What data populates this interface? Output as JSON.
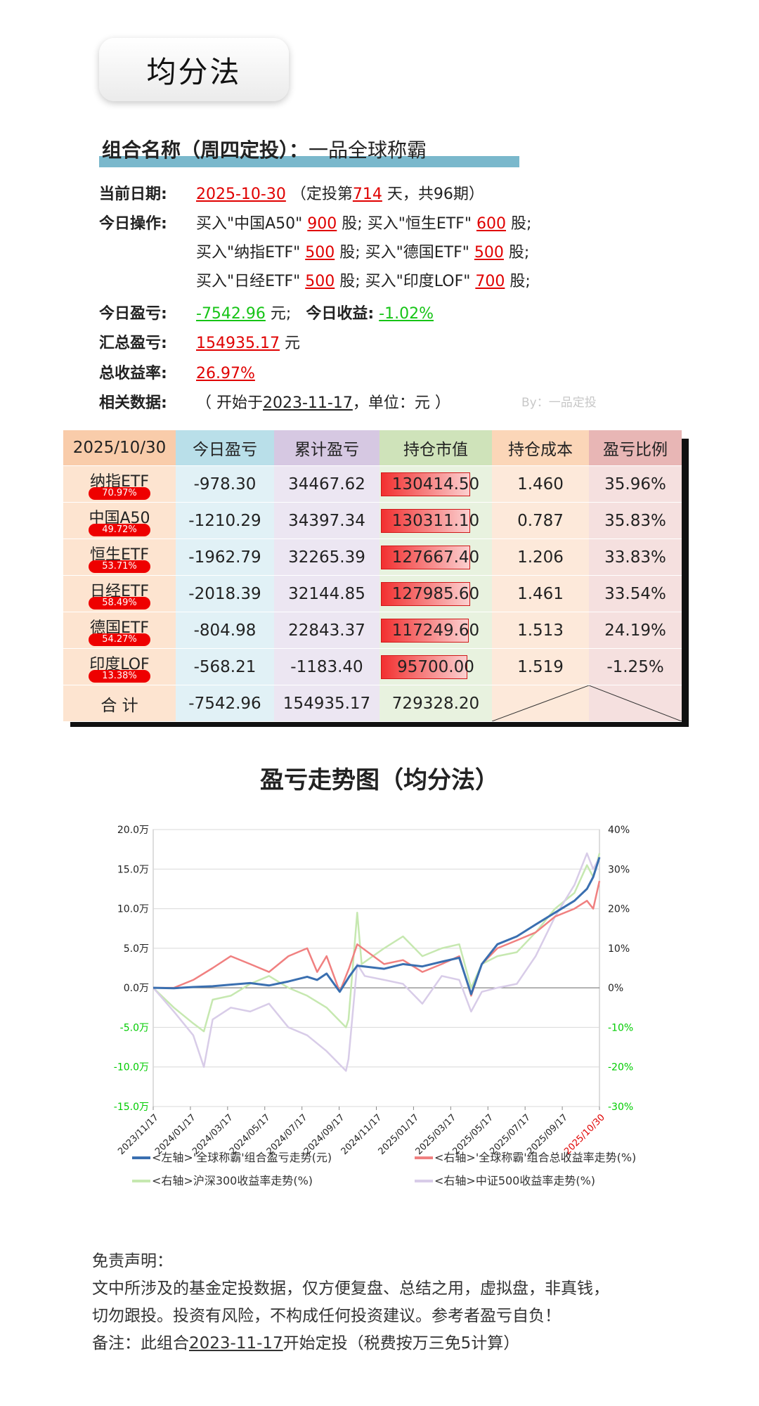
{
  "header": {
    "title": "均分法"
  },
  "portfolio": {
    "label": "组合名称（周四定投）：",
    "name": "一品全球称霸"
  },
  "info": {
    "date_label": "当前日期:",
    "date": "2025-10-30",
    "period_pre": "（定投第",
    "days": "714",
    "period_post": "天，共96期）",
    "op_label": "今日操作:",
    "ops": [
      [
        {
          "pre": "买入\"中国A50\"",
          "qty": "900",
          "post": "股;"
        },
        {
          "pre": "买入\"恒生ETF\"",
          "qty": "600",
          "post": "股;"
        }
      ],
      [
        {
          "pre": "买入\"纳指ETF\"",
          "qty": "500",
          "post": "股;"
        },
        {
          "pre": "买入\"德国ETF\"",
          "qty": "500",
          "post": "股;"
        }
      ],
      [
        {
          "pre": "买入\"日经ETF\"",
          "qty": "500",
          "post": "股;"
        },
        {
          "pre": "买入\"印度LOF\"",
          "qty": "700",
          "post": "股;"
        }
      ]
    ],
    "today_pl_label": "今日盈亏:",
    "today_pl": "-7542.96",
    "unit_yuan_sep": "元;",
    "today_ret_label": "今日收益:",
    "today_ret": "-1.02%",
    "total_pl_label": "汇总盈亏:",
    "total_pl": "154935.17",
    "unit_yuan": "元",
    "total_ret_label": "总收益率:",
    "total_ret": "26.97%",
    "related_label": "相关数据:",
    "related_pre": "（ 开始于",
    "related_date": "2023-11-17",
    "related_post": "，单位：元 ）",
    "by": "By：一品定投"
  },
  "table": {
    "headers": [
      "2025/10/30",
      "今日盈亏",
      "累计盈亏",
      "持仓市值",
      "持仓成本",
      "盈亏比例"
    ],
    "rows": [
      {
        "name": "纳指ETF",
        "pct": "70.97%",
        "today": "-978.30",
        "cum": "34467.62",
        "mv": "130414.50",
        "cost": "1.460",
        "ratio": "35.96%"
      },
      {
        "name": "中国A50",
        "pct": "49.72%",
        "today": "-1210.29",
        "cum": "34397.34",
        "mv": "130311.10",
        "cost": "0.787",
        "ratio": "35.83%"
      },
      {
        "name": "恒生ETF",
        "pct": "53.71%",
        "today": "-1962.79",
        "cum": "32265.39",
        "mv": "127667.40",
        "cost": "1.206",
        "ratio": "33.83%"
      },
      {
        "name": "日经ETF",
        "pct": "58.49%",
        "today": "-2018.39",
        "cum": "32144.85",
        "mv": "127985.60",
        "cost": "1.461",
        "ratio": "33.54%"
      },
      {
        "name": "德国ETF",
        "pct": "54.27%",
        "today": "-804.98",
        "cum": "22843.37",
        "mv": "117249.60",
        "cost": "1.513",
        "ratio": "24.19%"
      },
      {
        "name": "印度LOF",
        "pct": "13.38%",
        "today": "-568.21",
        "cum": "-1183.40",
        "mv": "95700.00",
        "cost": "1.519",
        "ratio": "-1.25%"
      }
    ],
    "total": {
      "label": "合 计",
      "today": "-7542.96",
      "cum": "154935.17",
      "mv": "729328.20"
    }
  },
  "chart_data": {
    "type": "line",
    "title": "盈亏走势图（均分法）",
    "x_ticks": [
      "2023/11/17",
      "2024/01/17",
      "2024/03/17",
      "2024/05/17",
      "2024/07/17",
      "2024/09/17",
      "2024/11/17",
      "2025/01/17",
      "2025/03/17",
      "2025/05/17",
      "2025/07/17",
      "2025/09/17",
      "2025/10/30"
    ],
    "x_tick_colors": {
      "2025/10/30": "#e00000"
    },
    "y_left_ticks": [
      "20.0万",
      "15.0万",
      "10.0万",
      "5.0万",
      "0.0万",
      "-5.0万",
      "-10.0万",
      "-15.0万"
    ],
    "y_left_range": [
      -150000,
      200000
    ],
    "y_right_ticks": [
      "40%",
      "30%",
      "20%",
      "10%",
      "0%",
      "-10%",
      "-20%",
      "-30%"
    ],
    "y_right_range": [
      -30,
      40
    ],
    "negative_tick_color": "#00cc00",
    "grid": true,
    "legend_position": "bottom",
    "series": [
      {
        "name": "<左轴>'全球称霸'组合盈亏走势(元)",
        "axis": "left",
        "color": "#3a6fb0",
        "points": [
          [
            "2023/11/17",
            0
          ],
          [
            "2023/12/20",
            -500
          ],
          [
            "2024/01/20",
            1000
          ],
          [
            "2024/02/20",
            2000
          ],
          [
            "2024/03/20",
            4000
          ],
          [
            "2024/04/20",
            6000
          ],
          [
            "2024/05/20",
            3000
          ],
          [
            "2024/06/20",
            8000
          ],
          [
            "2024/07/20",
            14000
          ],
          [
            "2024/08/05",
            10000
          ],
          [
            "2024/08/20",
            18000
          ],
          [
            "2024/09/10",
            -5000
          ],
          [
            "2024/09/25",
            14000
          ],
          [
            "2024/10/08",
            28000
          ],
          [
            "2024/11/20",
            24000
          ],
          [
            "2024/12/20",
            30000
          ],
          [
            "2025/01/20",
            27000
          ],
          [
            "2025/02/20",
            33000
          ],
          [
            "2025/03/20",
            38000
          ],
          [
            "2025/04/08",
            -8000
          ],
          [
            "2025/04/25",
            30000
          ],
          [
            "2025/05/20",
            55000
          ],
          [
            "2025/06/20",
            65000
          ],
          [
            "2025/07/20",
            80000
          ],
          [
            "2025/08/20",
            95000
          ],
          [
            "2025/09/20",
            110000
          ],
          [
            "2025/10/10",
            125000
          ],
          [
            "2025/10/20",
            140000
          ],
          [
            "2025/10/30",
            165000
          ]
        ]
      },
      {
        "name": "<右轴>'全球称霸'组合总收益率走势(%)",
        "axis": "right",
        "color": "#f08080",
        "points": [
          [
            "2023/11/17",
            0
          ],
          [
            "2023/12/20",
            0
          ],
          [
            "2024/01/20",
            2
          ],
          [
            "2024/02/20",
            5
          ],
          [
            "2024/03/20",
            8
          ],
          [
            "2024/04/20",
            6
          ],
          [
            "2024/05/20",
            4
          ],
          [
            "2024/06/20",
            8
          ],
          [
            "2024/07/20",
            10
          ],
          [
            "2024/08/05",
            4
          ],
          [
            "2024/08/20",
            8
          ],
          [
            "2024/09/10",
            -1
          ],
          [
            "2024/09/25",
            5
          ],
          [
            "2024/10/08",
            11
          ],
          [
            "2024/11/20",
            6
          ],
          [
            "2024/12/20",
            7
          ],
          [
            "2025/01/20",
            4
          ],
          [
            "2025/02/20",
            6
          ],
          [
            "2025/03/20",
            8
          ],
          [
            "2025/04/08",
            -2
          ],
          [
            "2025/04/25",
            6
          ],
          [
            "2025/05/20",
            10
          ],
          [
            "2025/06/20",
            12
          ],
          [
            "2025/07/20",
            14
          ],
          [
            "2025/08/20",
            18
          ],
          [
            "2025/09/20",
            20
          ],
          [
            "2025/10/10",
            22
          ],
          [
            "2025/10/20",
            20
          ],
          [
            "2025/10/30",
            27
          ]
        ]
      },
      {
        "name": "<右轴>沪深300收益率走势(%)",
        "axis": "right",
        "color": "#c6e8b0",
        "points": [
          [
            "2023/11/17",
            0
          ],
          [
            "2023/12/20",
            -5
          ],
          [
            "2024/01/20",
            -9
          ],
          [
            "2024/02/06",
            -11
          ],
          [
            "2024/02/20",
            -3
          ],
          [
            "2024/03/20",
            -2
          ],
          [
            "2024/04/20",
            1
          ],
          [
            "2024/05/20",
            3
          ],
          [
            "2024/06/20",
            0
          ],
          [
            "2024/07/20",
            -2
          ],
          [
            "2024/08/20",
            -5
          ],
          [
            "2024/09/20",
            -10
          ],
          [
            "2024/09/24",
            -8
          ],
          [
            "2024/10/08",
            19
          ],
          [
            "2024/10/15",
            6
          ],
          [
            "2024/11/20",
            10
          ],
          [
            "2024/12/20",
            13
          ],
          [
            "2025/01/20",
            8
          ],
          [
            "2025/02/20",
            10
          ],
          [
            "2025/03/20",
            11
          ],
          [
            "2025/04/08",
            0
          ],
          [
            "2025/04/25",
            6
          ],
          [
            "2025/05/20",
            8
          ],
          [
            "2025/06/20",
            9
          ],
          [
            "2025/07/20",
            14
          ],
          [
            "2025/08/20",
            20
          ],
          [
            "2025/09/20",
            24
          ],
          [
            "2025/10/10",
            31
          ],
          [
            "2025/10/20",
            28
          ],
          [
            "2025/10/30",
            34
          ]
        ]
      },
      {
        "name": "<右轴>中证500收益率走势(%)",
        "axis": "right",
        "color": "#d8cce8",
        "points": [
          [
            "2023/11/17",
            0
          ],
          [
            "2023/12/20",
            -6
          ],
          [
            "2024/01/20",
            -12
          ],
          [
            "2024/02/06",
            -20
          ],
          [
            "2024/02/20",
            -8
          ],
          [
            "2024/03/20",
            -5
          ],
          [
            "2024/04/20",
            -6
          ],
          [
            "2024/05/20",
            -4
          ],
          [
            "2024/06/20",
            -10
          ],
          [
            "2024/07/20",
            -12
          ],
          [
            "2024/08/20",
            -16
          ],
          [
            "2024/09/20",
            -21
          ],
          [
            "2024/09/24",
            -18
          ],
          [
            "2024/10/08",
            6
          ],
          [
            "2024/10/20",
            3
          ],
          [
            "2024/11/20",
            2
          ],
          [
            "2024/12/20",
            1
          ],
          [
            "2025/01/20",
            -4
          ],
          [
            "2025/02/20",
            3
          ],
          [
            "2025/03/20",
            2
          ],
          [
            "2025/04/08",
            -6
          ],
          [
            "2025/04/25",
            -1
          ],
          [
            "2025/05/20",
            0
          ],
          [
            "2025/06/20",
            1
          ],
          [
            "2025/07/20",
            8
          ],
          [
            "2025/08/20",
            18
          ],
          [
            "2025/09/20",
            26
          ],
          [
            "2025/10/10",
            34
          ],
          [
            "2025/10/20",
            30
          ],
          [
            "2025/10/30",
            33
          ]
        ]
      }
    ]
  },
  "disclaimer": {
    "title": "免责声明：",
    "line1": "文中所涉及的基金定投数据，仅方便复盘、总结之用，虚拟盘，非真钱，",
    "line2": "切勿跟投。投资有风险，不构成任何投资建议。参考者盈亏自负！",
    "note_pre": "备注：此组合",
    "note_date": "2023-11-17",
    "note_post": "开始定投（税费按万三免5计算）"
  }
}
